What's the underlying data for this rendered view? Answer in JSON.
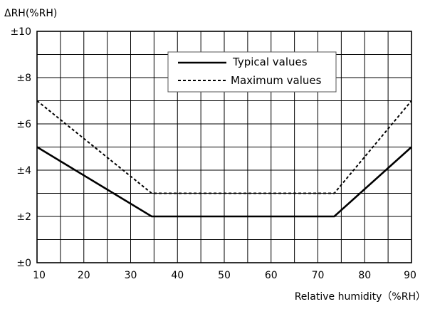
{
  "chart_data": {
    "type": "line",
    "ylabel": "ΔRH(%RH)",
    "xlabel": "Relative humidity（%RH）",
    "xlim": [
      10,
      90
    ],
    "ylim": [
      0,
      10
    ],
    "x_ticks": [
      10,
      20,
      30,
      40,
      50,
      60,
      70,
      80,
      90
    ],
    "x_tick_labels": [
      "10",
      "20",
      "30",
      "40",
      "50",
      "60",
      "70",
      "80",
      "90"
    ],
    "y_ticks": [
      0,
      2,
      4,
      6,
      8,
      10
    ],
    "y_tick_labels": [
      "±0",
      "±2",
      "±4",
      "±6",
      "±8",
      "±10"
    ],
    "grid": true,
    "minor_x_step": 5,
    "minor_y_step": 1,
    "legend_position": "top-center",
    "series": [
      {
        "name": "Typical values",
        "style": "solid",
        "color": "#000000",
        "x": [
          10,
          34.5,
          73.5,
          90
        ],
        "y": [
          5,
          2,
          2,
          5
        ]
      },
      {
        "name": "Maximum values",
        "style": "dashed",
        "color": "#000000",
        "x": [
          10,
          34.5,
          73.5,
          90
        ],
        "y": [
          7,
          3,
          3,
          7
        ]
      }
    ]
  }
}
